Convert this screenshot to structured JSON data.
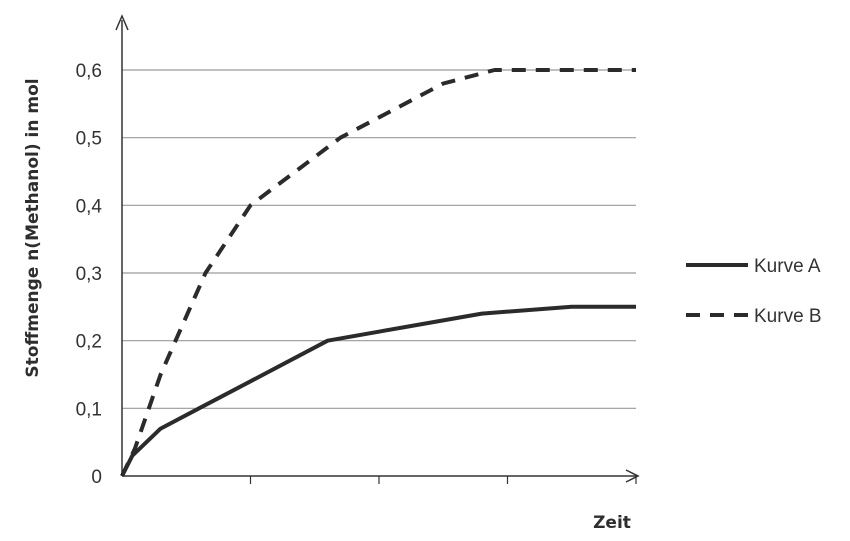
{
  "chart_data": {
    "type": "line",
    "title": "",
    "xlabel": "Zeit",
    "ylabel": "Stoffmenge n(Methanol) in mol",
    "ylim": [
      0,
      0.6
    ],
    "yticks": [
      "0",
      "0,1",
      "0,2",
      "0,3",
      "0,4",
      "0,5",
      "0,6"
    ],
    "y_tick_values": [
      0,
      0.1,
      0.2,
      0.3,
      0.4,
      0.5,
      0.6
    ],
    "x_tick_count": 4,
    "xlim": [
      0,
      4
    ],
    "grid": "horizontal",
    "legend_position": "right",
    "series": [
      {
        "name": "Kurve A",
        "style": "solid",
        "color": "#2b2b2b",
        "x": [
          0,
          0.08,
          0.3,
          0.6,
          1.0,
          1.6,
          2.2,
          2.8,
          3.5,
          4.0
        ],
        "y": [
          0,
          0.03,
          0.07,
          0.1,
          0.14,
          0.2,
          0.22,
          0.24,
          0.25,
          0.25
        ]
      },
      {
        "name": "Kurve B",
        "style": "dashed",
        "color": "#2b2b2b",
        "x": [
          0,
          0.1,
          0.3,
          0.65,
          1.0,
          1.35,
          1.7,
          2.1,
          2.5,
          2.9,
          3.2,
          3.5,
          4.0
        ],
        "y": [
          0,
          0.04,
          0.15,
          0.3,
          0.4,
          0.45,
          0.5,
          0.54,
          0.58,
          0.6,
          0.6,
          0.6,
          0.6
        ]
      }
    ]
  }
}
